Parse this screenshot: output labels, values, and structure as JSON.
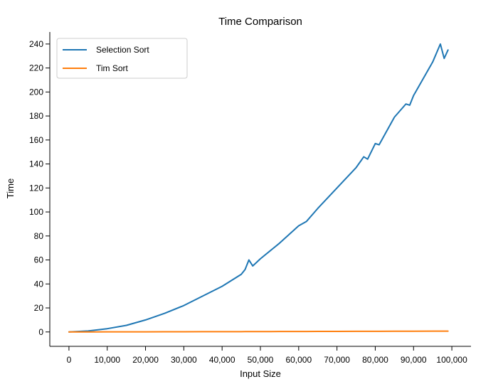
{
  "chart_data": {
    "type": "line",
    "title": "Time Comparison",
    "xlabel": "Input Size",
    "ylabel": "Time",
    "xlim": [
      -5000,
      105000
    ],
    "ylim": [
      -12,
      250
    ],
    "x_ticks": [
      0,
      10000,
      20000,
      30000,
      40000,
      50000,
      60000,
      70000,
      80000,
      90000,
      100000
    ],
    "x_tick_labels": [
      "0",
      "10,000",
      "20,000",
      "30,000",
      "40,000",
      "50,000",
      "60,000",
      "70,000",
      "80,000",
      "90,000",
      "100,000"
    ],
    "y_ticks": [
      0,
      20,
      40,
      60,
      80,
      100,
      120,
      140,
      160,
      180,
      200,
      220,
      240
    ],
    "y_tick_labels": [
      "0",
      "20",
      "40",
      "60",
      "80",
      "100",
      "120",
      "140",
      "160",
      "180",
      "200",
      "220",
      "240"
    ],
    "grid": false,
    "legend_position": "top-left",
    "x": [
      0,
      5000,
      10000,
      15000,
      20000,
      25000,
      30000,
      35000,
      40000,
      45000,
      46000,
      47000,
      48000,
      50000,
      55000,
      60000,
      62000,
      65000,
      70000,
      75000,
      77000,
      78000,
      80000,
      81000,
      85000,
      88000,
      89000,
      90000,
      95000,
      97000,
      98000,
      99000
    ],
    "series": [
      {
        "name": "Selection Sort",
        "color": "#1f77b4",
        "values": [
          0.0,
          0.8,
          2.7,
          5.5,
          10.0,
          15.5,
          22.0,
          30.0,
          38.0,
          48.0,
          52.0,
          60.0,
          55.0,
          61.0,
          74.0,
          88.5,
          92.0,
          103.0,
          120.0,
          137.0,
          146.0,
          144.0,
          157.0,
          156.0,
          179.0,
          190.0,
          189.0,
          197.0,
          225.0,
          240.0,
          228.0,
          235.0
        ]
      },
      {
        "name": "Tim Sort",
        "color": "#ff7f0e",
        "values": [
          0.0,
          0.02,
          0.05,
          0.08,
          0.1,
          0.13,
          0.16,
          0.2,
          0.23,
          0.26,
          0.27,
          0.28,
          0.29,
          0.3,
          0.34,
          0.38,
          0.39,
          0.41,
          0.45,
          0.49,
          0.5,
          0.51,
          0.53,
          0.54,
          0.57,
          0.6,
          0.6,
          0.61,
          0.65,
          0.67,
          0.68,
          0.69
        ]
      }
    ]
  }
}
